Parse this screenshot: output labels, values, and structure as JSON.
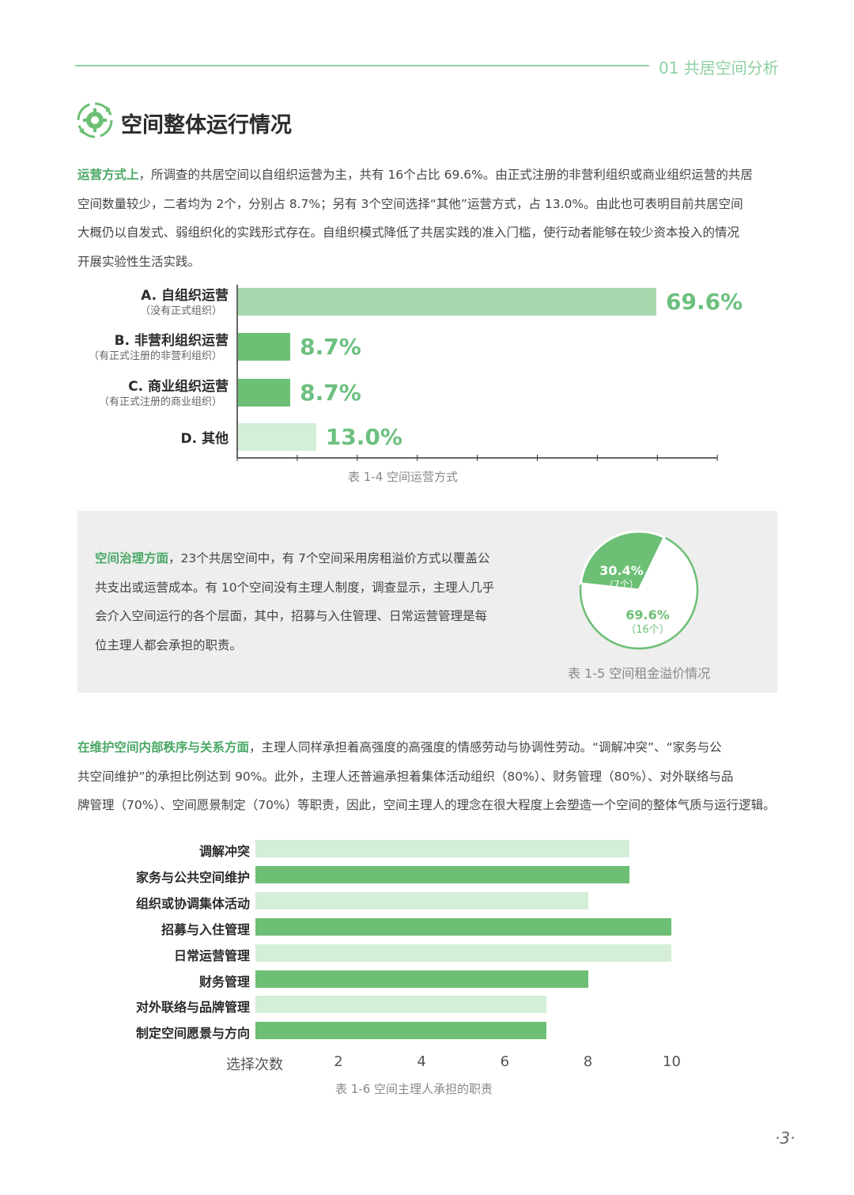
{
  "header": {
    "section": "01 共居空间分析"
  },
  "page_title": "空间整体运行情况",
  "para1": {
    "lead": "运营方式上",
    "line1_rest": "，所调查的共居空间以自组织运营为主，共有 16个占比 69.6%。由正式注册的非营利组织或商业组织运营的共居",
    "line2": "空间数量较少，二者均为 2个，分别占 8.7%；另有 3个空间选择“其他”运营方式，占 13.0%。由此也可表明目前共居空间",
    "line3": "大概仍以自发式、弱组织化的实践形式存在。自组织模式降低了共居实践的准入门槛，使行动者能够在较少资本投入的情况",
    "line4": "开展实验性生活实践。"
  },
  "chart1_caption": "表 1-4 空间运营方式",
  "governance": {
    "lead": "空间治理方面",
    "line1_rest": "，23个共居空间中，有 7个空间采用房租溢价方式以覆盖公",
    "line2": "共支出或运营成本。有 10个空间没有主理人制度，调查显示，主理人几乎",
    "line3": "会介入空间运行的各个层面，其中，招募与入住管理、日常运营管理是每",
    "line4": "位主理人都会承担的职责。",
    "caption": "表 1-5  空间租金溢价情况"
  },
  "para3": {
    "lead": "在维护空间内部秩序与关系方面",
    "line1_rest": "，主理人同样承担着高强度的高强度的情感劳动与协调性劳动。“调解冲突”、“家务与公",
    "line2": "共空间维护”的承担比例达到 90%。此外，主理人还普遍承担着集体活动组织（80%）、财务管理（80%）、对外联络与品",
    "line3": "牌管理（70%）、空间愿景制定（70%）等职责，因此，空间主理人的理念在很大程度上会塑造一个空间的整体气质与运行逻辑。"
  },
  "chart3_caption": "表 1-6 空间主理人承担的职责",
  "page_number": "·3·",
  "colors": {
    "green_dark": "#6cbf74",
    "green_mid": "#a6d8ad",
    "green_light": "#d4eed7",
    "accent_text": "#4aa866"
  },
  "chart_data": [
    {
      "type": "bar",
      "orientation": "horizontal",
      "categories": [
        "A. 自组织运营",
        "B. 非营利组织运营",
        "C. 商业组织运营",
        "D. 其他"
      ],
      "sublabels": [
        "（没有正式组织）",
        "（有正式注册的非营利组织）",
        "（有正式注册的商业组织）",
        ""
      ],
      "values": [
        69.6,
        8.7,
        8.7,
        13.0
      ],
      "value_labels": [
        "69.6%",
        "8.7%",
        "8.7%",
        "13.0%"
      ],
      "bar_colors": [
        "#a6d8ad",
        "#6cbf74",
        "#6cbf74",
        "#d4eed7"
      ],
      "xlim": [
        0,
        80
      ],
      "title": "表 1-4 空间运营方式"
    },
    {
      "type": "pie",
      "slices": [
        {
          "value": 30.4,
          "label": "30.4%",
          "sublabel": "（7个）",
          "color": "#6cbf74"
        },
        {
          "value": 69.6,
          "label": "69.6%",
          "sublabel": "（16个）",
          "color": "#ffffff"
        }
      ],
      "title": "表 1-5  空间租金溢价情况"
    },
    {
      "type": "bar",
      "orientation": "horizontal",
      "categories": [
        "调解冲突",
        "家务与公共空间维护",
        "组织或协调集体活动",
        "招募与入住管理",
        "日常运营管理",
        "财务管理",
        "对外联络与品牌管理",
        "制定空间愿景与方向"
      ],
      "values": [
        9,
        9,
        8,
        10,
        10,
        8,
        7,
        7
      ],
      "bar_colors": [
        "#d4eed7",
        "#6cbf74",
        "#d4eed7",
        "#6cbf74",
        "#d4eed7",
        "#6cbf74",
        "#d4eed7",
        "#6cbf74"
      ],
      "xlabel": "选择次数",
      "xticks": [
        2,
        4,
        6,
        8,
        10
      ],
      "xlim": [
        0,
        10
      ],
      "title": "表 1-6 空间主理人承担的职责"
    }
  ]
}
